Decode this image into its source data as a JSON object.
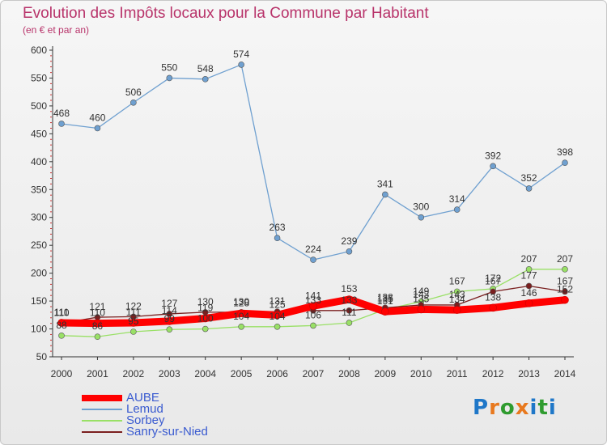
{
  "title": "Evolution des Impôts locaux pour la Commune par Habitant",
  "subtitle": "(en € et par an)",
  "logo": {
    "text": "Proxiti",
    "colors": [
      "#1f77c8",
      "#e8791e",
      "#2f9b2f",
      "#e8791e",
      "#1f77c8",
      "#2f9b2f",
      "#1f77c8"
    ]
  },
  "chart_data": {
    "type": "line",
    "x": [
      2000,
      2001,
      2002,
      2003,
      2004,
      2005,
      2006,
      2007,
      2008,
      2009,
      2010,
      2011,
      2012,
      2013,
      2014
    ],
    "ylim": [
      50,
      600
    ],
    "yticks": [
      50,
      100,
      150,
      200,
      250,
      300,
      350,
      400,
      450,
      500,
      550,
      600
    ],
    "grid": false,
    "legend_position": "bottom-left",
    "series": [
      {
        "name": "AUBE",
        "color": "#ff0000",
        "values": [
          111,
          110,
          111,
          114,
          119,
          128,
          125,
          141,
          153,
          131,
          135,
          134,
          138,
          146,
          152
        ]
      },
      {
        "name": "Lemud",
        "color": "#6fa0d0",
        "values": [
          468,
          460,
          506,
          550,
          548,
          574,
          263,
          224,
          239,
          341,
          300,
          314,
          392,
          352,
          398
        ]
      },
      {
        "name": "Sorbey",
        "color": "#99e066",
        "values": [
          88,
          86,
          95,
          99,
          100,
          104,
          104,
          106,
          111,
          135,
          149,
          167,
          172,
          207,
          207
        ]
      },
      {
        "name": "Sanry-sur-Nied",
        "color": "#7a1f1f",
        "values": [
          110,
          121,
          122,
          127,
          130,
          130,
          131,
          133,
          133,
          138,
          143,
          143,
          167,
          177,
          167
        ]
      }
    ]
  }
}
